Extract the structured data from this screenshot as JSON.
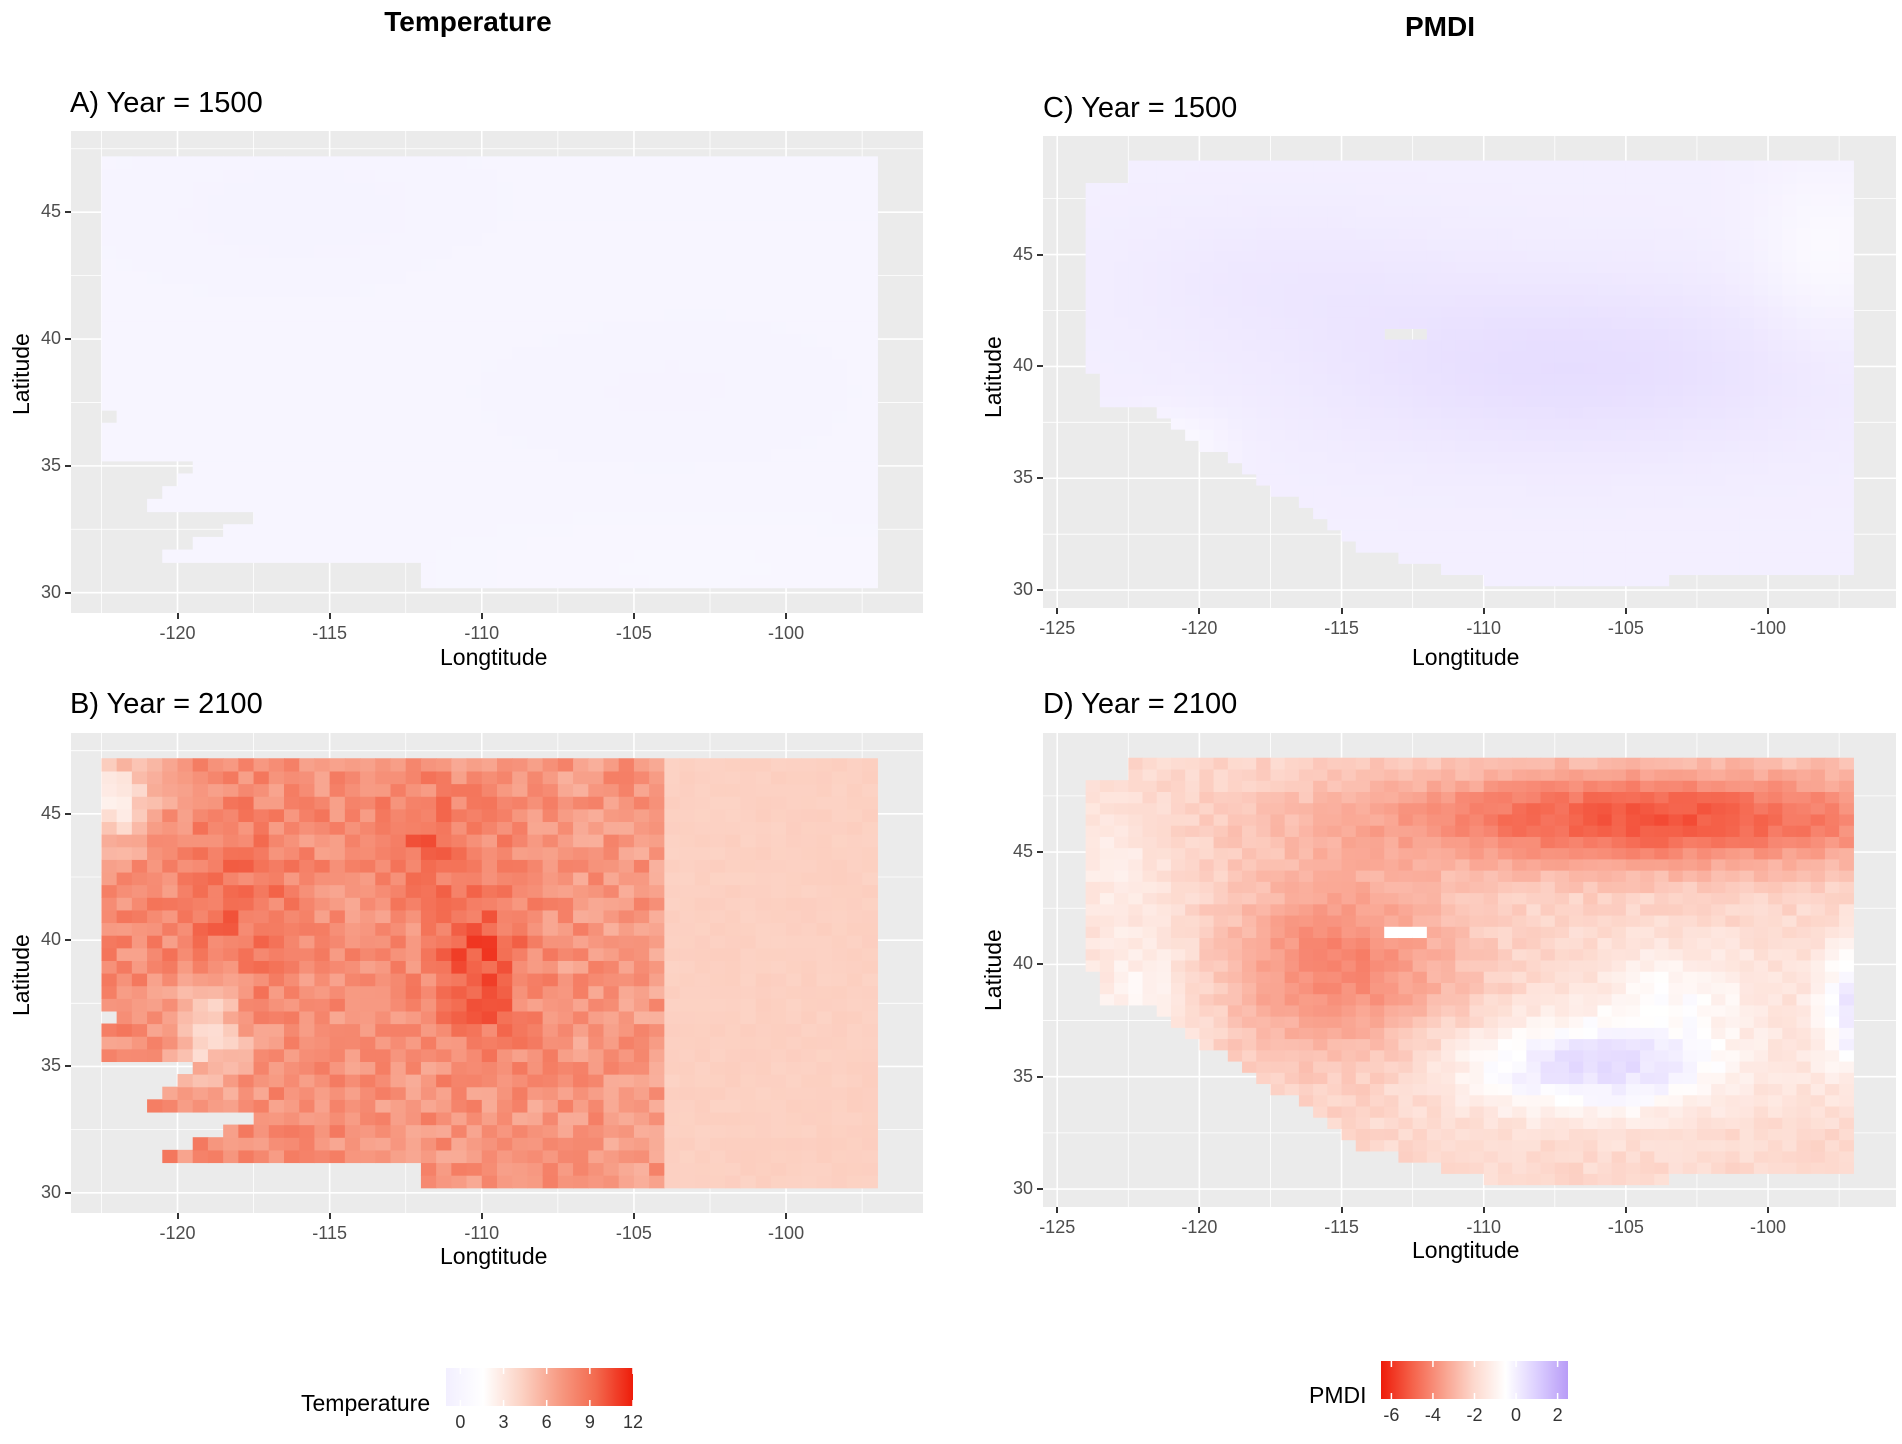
{
  "column_titles": {
    "left": "Temperature",
    "right": "PMDI"
  },
  "chart_data": [
    {
      "type": "heatmap",
      "panel": "A",
      "title": "A) Year = 1500",
      "variable": "Temperature",
      "xlabel": "Longtitude",
      "ylabel": "Latitude",
      "xlim": [
        -123.5,
        -95.5
      ],
      "ylim": [
        29.2,
        48.2
      ],
      "xticks": [
        -120,
        -115,
        -110,
        -105,
        -100
      ],
      "yticks": [
        30,
        35,
        40,
        45
      ],
      "xtick_labels": [
        "-120",
        "-115",
        "-110",
        "-105",
        "-100"
      ],
      "ytick_labels": [
        "30",
        "35",
        "40",
        "45"
      ],
      "grid": true,
      "value_range_estimate": [
        -0.5,
        0.5
      ],
      "pattern": "near zero everywhere; slight negative in north, slight positive in south-east"
    },
    {
      "type": "heatmap",
      "panel": "B",
      "title": "B) Year = 2100",
      "variable": "Temperature",
      "xlabel": "Longtitude",
      "ylabel": "Latitude",
      "xlim": [
        -123.5,
        -95.5
      ],
      "ylim": [
        29.2,
        48.2
      ],
      "xticks": [
        -120,
        -115,
        -110,
        -105,
        -100
      ],
      "yticks": [
        30,
        35,
        40,
        45
      ],
      "xtick_labels": [
        "-120",
        "-115",
        "-110",
        "-105",
        "-100"
      ],
      "ytick_labels": [
        "30",
        "35",
        "40",
        "45"
      ],
      "grid": true,
      "value_range_estimate": [
        0,
        11
      ],
      "pattern": "warming 4-6 in east, 6-9 in interior, peaks near -110,39; lower along west coast"
    },
    {
      "type": "heatmap",
      "panel": "C",
      "title": "C) Year = 1500",
      "variable": "PMDI",
      "xlabel": "Longtitude",
      "ylabel": "Latitude",
      "xlim": [
        -125.5,
        -95.5
      ],
      "ylim": [
        29.2,
        50.3
      ],
      "xticks": [
        -125,
        -120,
        -115,
        -110,
        -105,
        -100
      ],
      "yticks": [
        30,
        35,
        40,
        45
      ],
      "xtick_labels": [
        "-125",
        "-120",
        "-115",
        "-110",
        "-105",
        "-100"
      ],
      "ytick_labels": [
        "30",
        "35",
        "40",
        "45"
      ],
      "grid": true,
      "value_range_estimate": [
        -0.5,
        0.8
      ],
      "pattern": "near zero, slightly positive in central/eastern interior"
    },
    {
      "type": "heatmap",
      "panel": "D",
      "title": "D) Year = 2100",
      "variable": "PMDI",
      "xlabel": "Longtitude",
      "ylabel": "Latitude",
      "xlim": [
        -125.5,
        -95.5
      ],
      "ylim": [
        29.2,
        50.3
      ],
      "xticks": [
        -125,
        -120,
        -115,
        -110,
        -105,
        -100
      ],
      "yticks": [
        30,
        35,
        40,
        45
      ],
      "xtick_labels": [
        "-125",
        "-120",
        "-115",
        "-110",
        "-105",
        "-100"
      ],
      "ytick_labels": [
        "30",
        "35",
        "40",
        "45"
      ],
      "grid": true,
      "value_range_estimate": [
        -6,
        1.5
      ],
      "pattern": "strong drying (-5 to -6) across north 44-48; drying (-4) in interior west; slight wetting around -107,36 and -97,38"
    }
  ],
  "legends": {
    "temperature": {
      "title": "Temperature",
      "ticks": [
        "0",
        "3",
        "6",
        "9",
        "12"
      ],
      "tick_values": [
        0,
        3,
        6,
        9,
        12
      ],
      "range": [
        -1,
        12
      ],
      "colors": [
        "#f2efff",
        "#ffffff",
        "#fcd3c5",
        "#f79c85",
        "#f36a4f",
        "#ee1c0a"
      ]
    },
    "pmdi": {
      "title": "PMDI",
      "ticks": [
        "-6",
        "-4",
        "-2",
        "0",
        "2"
      ],
      "tick_values": [
        -6,
        -4,
        -2,
        0,
        2
      ],
      "range": [
        -6.5,
        2.5
      ],
      "colors": [
        "#ee1c0a",
        "#f5624a",
        "#f9a08c",
        "#fdd9ce",
        "#ffffff",
        "#dccfff",
        "#b89cf7"
      ]
    }
  }
}
